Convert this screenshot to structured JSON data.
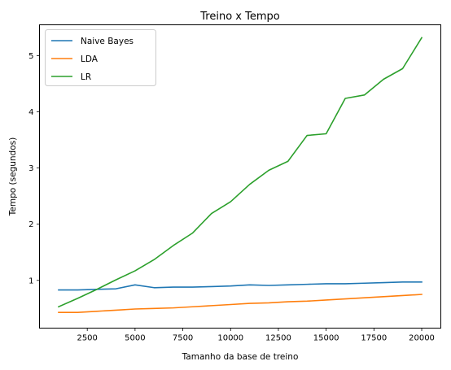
{
  "chart_data": {
    "type": "line",
    "title": "Treino x Tempo",
    "xlabel": "Tamanho da base de treino",
    "ylabel": "Tempo (segundos)",
    "xlim": [
      0,
      21000
    ],
    "ylim": [
      0.15,
      5.55
    ],
    "xticks": [
      2500,
      5000,
      7500,
      10000,
      12500,
      15000,
      17500,
      20000
    ],
    "xtick_labels": [
      "2500",
      "5000",
      "7500",
      "10000",
      "12500",
      "15000",
      "17500",
      "20000"
    ],
    "yticks": [
      1,
      2,
      3,
      4,
      5
    ],
    "ytick_labels": [
      "1",
      "2",
      "3",
      "4",
      "5"
    ],
    "grid": false,
    "legend_position": "top-left",
    "x": [
      1000,
      2000,
      3000,
      4000,
      5000,
      6000,
      7000,
      8000,
      9000,
      10000,
      11000,
      12000,
      13000,
      14000,
      15000,
      16000,
      17000,
      18000,
      19000,
      20000
    ],
    "series": [
      {
        "name": "Naive Bayes",
        "color": "#1f77b4",
        "values": [
          0.83,
          0.83,
          0.84,
          0.85,
          0.92,
          0.87,
          0.88,
          0.88,
          0.89,
          0.9,
          0.92,
          0.91,
          0.92,
          0.93,
          0.94,
          0.94,
          0.95,
          0.96,
          0.97,
          0.97
        ]
      },
      {
        "name": "LDA",
        "color": "#ff7f0e",
        "values": [
          0.43,
          0.43,
          0.45,
          0.47,
          0.49,
          0.5,
          0.51,
          0.53,
          0.55,
          0.57,
          0.59,
          0.6,
          0.62,
          0.63,
          0.65,
          0.67,
          0.69,
          0.71,
          0.73,
          0.75
        ]
      },
      {
        "name": "LR",
        "color": "#2ca02c",
        "values": [
          0.53,
          0.68,
          0.84,
          1.01,
          1.17,
          1.37,
          1.62,
          1.84,
          2.19,
          2.4,
          2.71,
          2.96,
          3.12,
          3.58,
          3.61,
          4.24,
          4.3,
          4.58,
          4.77,
          5.32
        ]
      }
    ]
  }
}
